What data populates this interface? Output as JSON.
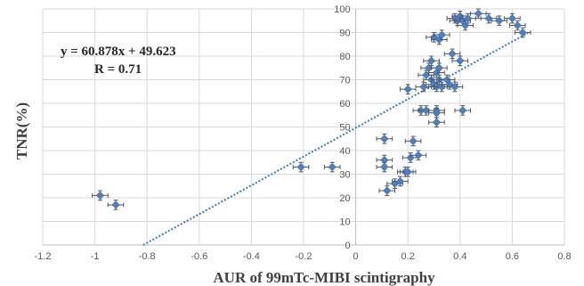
{
  "chart_data": {
    "type": "scatter",
    "title": "",
    "xlabel": "AUR of 99mTc-MIBI scintigraphy",
    "ylabel": "TNR(%)",
    "xlim": [
      -1.2,
      0.8
    ],
    "ylim": [
      0,
      100
    ],
    "xticks": [
      -1.2,
      -1.0,
      -0.8,
      -0.6,
      -0.4,
      -0.2,
      0,
      0.2,
      0.4,
      0.6,
      0.8
    ],
    "xtick_labels": [
      "-1.2",
      "-1",
      "-0.8",
      "-0.6",
      "-0.4",
      "-0.2",
      "0",
      "0.2",
      "0.4",
      "0.6",
      "0.8"
    ],
    "yticks": [
      0,
      10,
      20,
      30,
      40,
      50,
      60,
      70,
      80,
      90,
      100
    ],
    "ytick_labels": [
      "0",
      "10",
      "20",
      "30",
      "40",
      "50",
      "60",
      "70",
      "80",
      "90",
      "100"
    ],
    "grid": true,
    "legend": "none",
    "equation_text": "y = 60.878x + 49.623",
    "r_text": "R = 0.71",
    "trendline": {
      "slope": 60.878,
      "intercept": 49.623,
      "x_range": [
        -0.815,
        0.66
      ],
      "color": "#3b7bbf",
      "style": "dotted"
    },
    "marker_color": "#4f7fc0",
    "error_bar_x": 0.03,
    "error_bar_y": 2,
    "points": [
      {
        "x": -0.98,
        "y": 21
      },
      {
        "x": -0.92,
        "y": 17
      },
      {
        "x": -0.21,
        "y": 33
      },
      {
        "x": -0.09,
        "y": 33
      },
      {
        "x": 0.11,
        "y": 36
      },
      {
        "x": 0.11,
        "y": 33
      },
      {
        "x": 0.11,
        "y": 45
      },
      {
        "x": 0.12,
        "y": 23
      },
      {
        "x": 0.15,
        "y": 26
      },
      {
        "x": 0.17,
        "y": 27
      },
      {
        "x": 0.19,
        "y": 31
      },
      {
        "x": 0.2,
        "y": 31
      },
      {
        "x": 0.21,
        "y": 37
      },
      {
        "x": 0.22,
        "y": 44
      },
      {
        "x": 0.24,
        "y": 38
      },
      {
        "x": 0.2,
        "y": 66
      },
      {
        "x": 0.25,
        "y": 57
      },
      {
        "x": 0.27,
        "y": 57
      },
      {
        "x": 0.26,
        "y": 67
      },
      {
        "x": 0.27,
        "y": 72
      },
      {
        "x": 0.28,
        "y": 75
      },
      {
        "x": 0.29,
        "y": 70
      },
      {
        "x": 0.29,
        "y": 78
      },
      {
        "x": 0.3,
        "y": 68
      },
      {
        "x": 0.31,
        "y": 67
      },
      {
        "x": 0.3,
        "y": 88
      },
      {
        "x": 0.31,
        "y": 73
      },
      {
        "x": 0.32,
        "y": 75
      },
      {
        "x": 0.32,
        "y": 70
      },
      {
        "x": 0.33,
        "y": 67
      },
      {
        "x": 0.32,
        "y": 87
      },
      {
        "x": 0.33,
        "y": 89
      },
      {
        "x": 0.35,
        "y": 70
      },
      {
        "x": 0.36,
        "y": 68
      },
      {
        "x": 0.37,
        "y": 81
      },
      {
        "x": 0.4,
        "y": 78
      },
      {
        "x": 0.38,
        "y": 67
      },
      {
        "x": 0.31,
        "y": 57
      },
      {
        "x": 0.31,
        "y": 56
      },
      {
        "x": 0.31,
        "y": 52
      },
      {
        "x": 0.41,
        "y": 57
      },
      {
        "x": 0.38,
        "y": 96
      },
      {
        "x": 0.39,
        "y": 95
      },
      {
        "x": 0.4,
        "y": 97
      },
      {
        "x": 0.41,
        "y": 95
      },
      {
        "x": 0.42,
        "y": 93
      },
      {
        "x": 0.43,
        "y": 96
      },
      {
        "x": 0.47,
        "y": 98
      },
      {
        "x": 0.51,
        "y": 96
      },
      {
        "x": 0.55,
        "y": 95
      },
      {
        "x": 0.6,
        "y": 96
      },
      {
        "x": 0.62,
        "y": 93
      },
      {
        "x": 0.64,
        "y": 90
      }
    ]
  }
}
